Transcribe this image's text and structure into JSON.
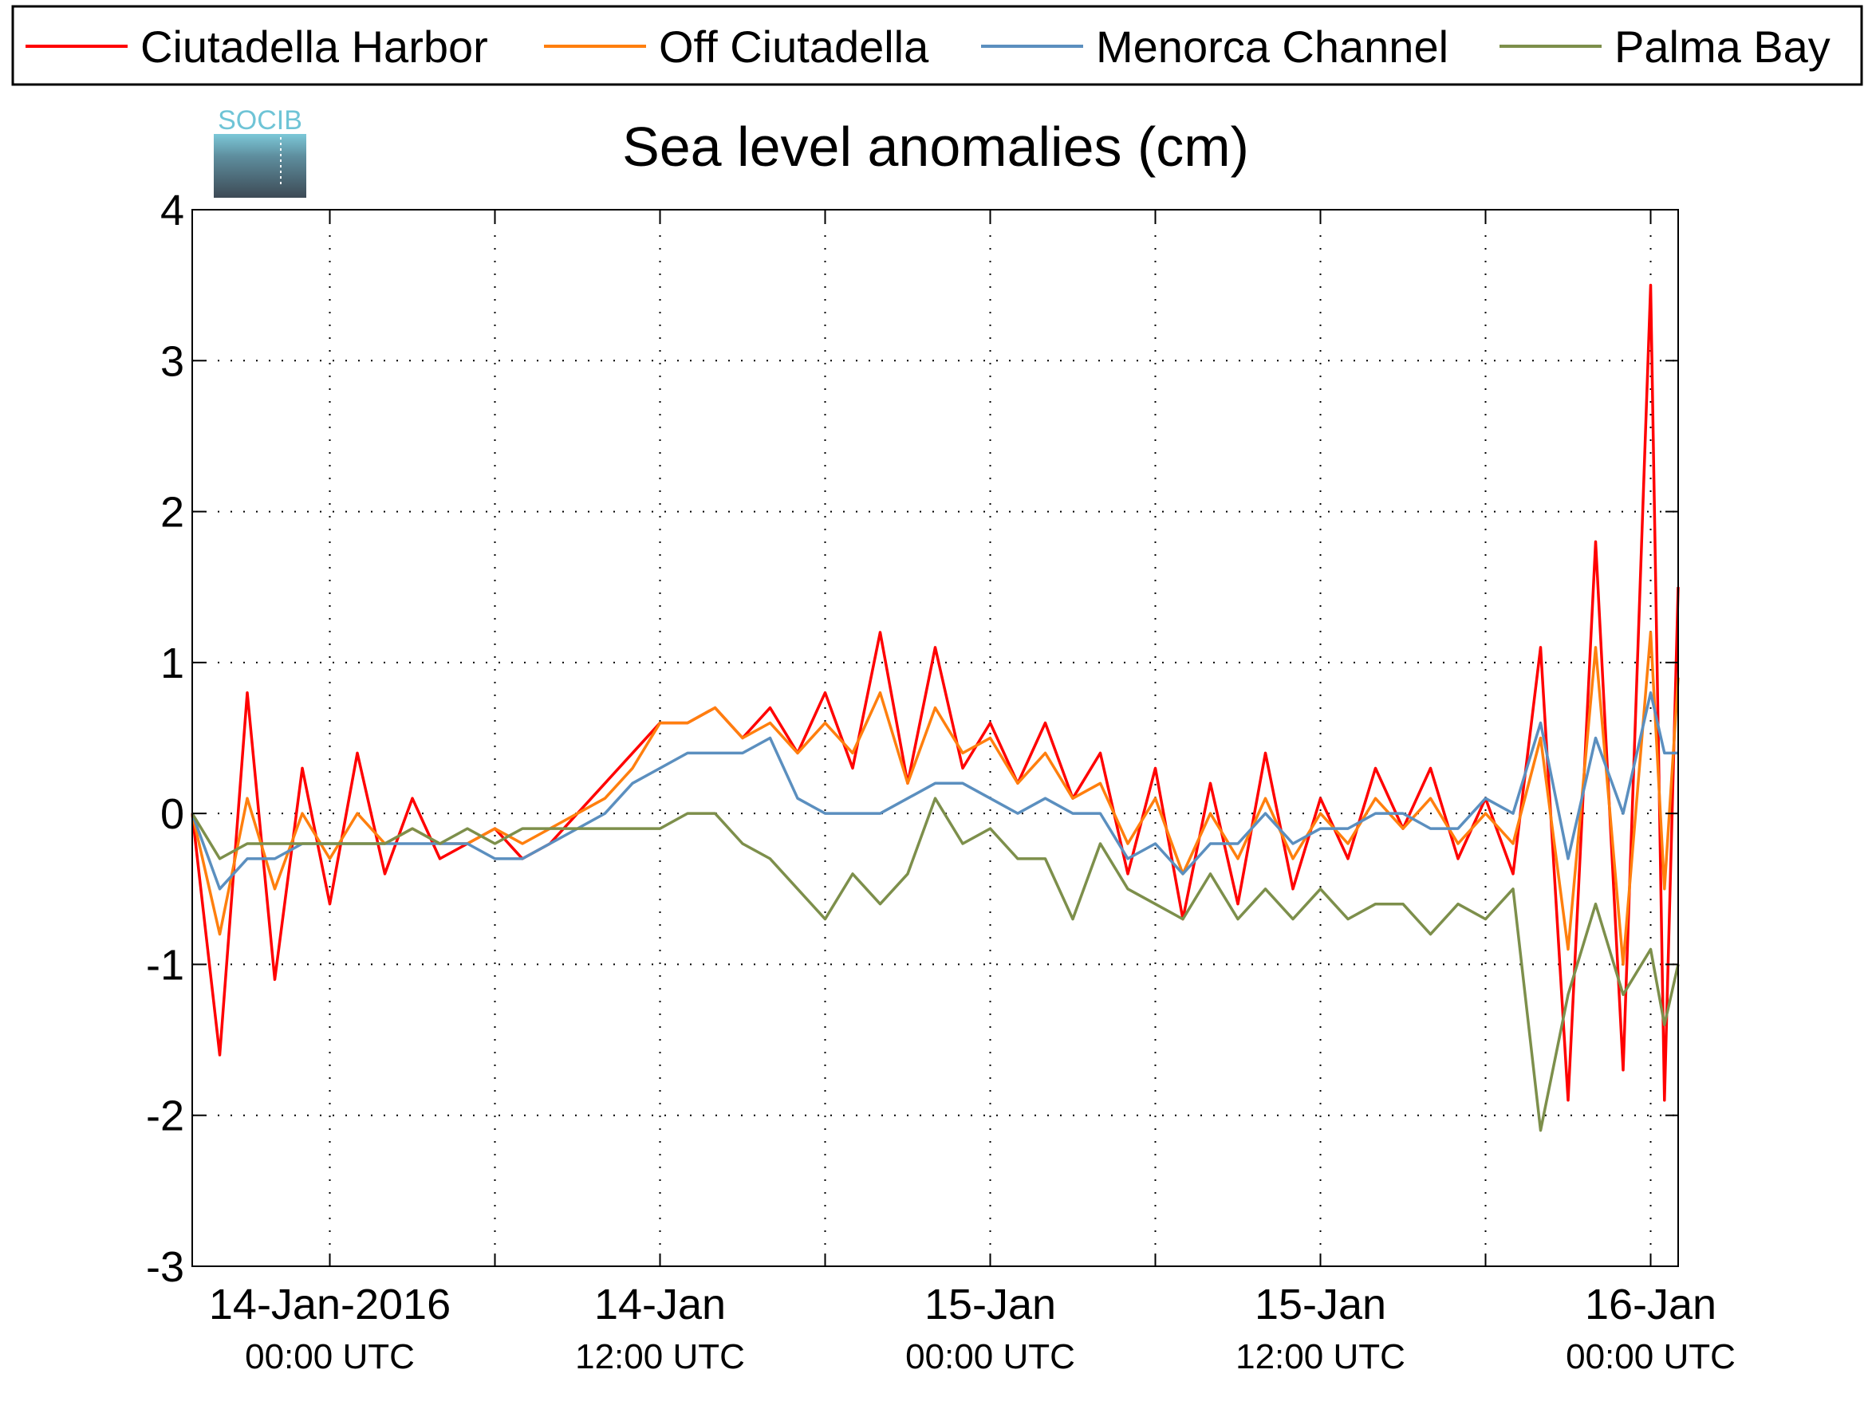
{
  "logo": {
    "text": "SOCIB"
  },
  "chart_data": {
    "type": "line",
    "title": "Sea level anomalies (cm)",
    "xlabel": "",
    "ylabel": "",
    "ylim": [
      -3,
      4
    ],
    "yticks": [
      "-3",
      "-2",
      "-1",
      "0",
      "1",
      "2",
      "3",
      "4"
    ],
    "xlim": [
      "2016-01-13T19:00",
      "2016-01-16T01:00"
    ],
    "xtick_labels": [
      {
        "date": "14-Jan-2016",
        "time": "00:00 UTC"
      },
      {
        "date": "14-Jan",
        "time": "12:00 UTC"
      },
      {
        "date": "15-Jan",
        "time": "00:00 UTC"
      },
      {
        "date": "15-Jan",
        "time": "12:00 UTC"
      },
      {
        "date": "16-Jan",
        "time": "00:00 UTC"
      }
    ],
    "grid": true,
    "legend_position": "top",
    "series": [
      {
        "name": "Ciutadella Harbor",
        "color": "#ff0000",
        "points": [
          [
            "2016-01-13T19:00",
            0.0
          ],
          [
            "2016-01-13T20:00",
            -1.6
          ],
          [
            "2016-01-13T21:00",
            0.8
          ],
          [
            "2016-01-13T22:00",
            -1.1
          ],
          [
            "2016-01-13T23:00",
            0.3
          ],
          [
            "2016-01-14T00:00",
            -0.6
          ],
          [
            "2016-01-14T01:00",
            0.4
          ],
          [
            "2016-01-14T02:00",
            -0.4
          ],
          [
            "2016-01-14T03:00",
            0.1
          ],
          [
            "2016-01-14T04:00",
            -0.3
          ],
          [
            "2016-01-14T05:00",
            -0.2
          ],
          [
            "2016-01-14T06:00",
            -0.1
          ],
          [
            "2016-01-14T07:00",
            -0.3
          ],
          [
            "2016-01-14T08:00",
            -0.2
          ],
          [
            "2016-01-14T09:00",
            0.0
          ],
          [
            "2016-01-14T10:00",
            0.2
          ],
          [
            "2016-01-14T11:00",
            0.4
          ],
          [
            "2016-01-14T12:00",
            0.6
          ],
          [
            "2016-01-14T13:00",
            0.6
          ],
          [
            "2016-01-14T14:00",
            0.7
          ],
          [
            "2016-01-14T15:00",
            0.5
          ],
          [
            "2016-01-14T16:00",
            0.7
          ],
          [
            "2016-01-14T17:00",
            0.4
          ],
          [
            "2016-01-14T18:00",
            0.8
          ],
          [
            "2016-01-14T19:00",
            0.3
          ],
          [
            "2016-01-14T20:00",
            1.2
          ],
          [
            "2016-01-14T21:00",
            0.2
          ],
          [
            "2016-01-14T22:00",
            1.1
          ],
          [
            "2016-01-14T23:00",
            0.3
          ],
          [
            "2016-01-15T00:00",
            0.6
          ],
          [
            "2016-01-15T01:00",
            0.2
          ],
          [
            "2016-01-15T02:00",
            0.6
          ],
          [
            "2016-01-15T03:00",
            0.1
          ],
          [
            "2016-01-15T04:00",
            0.4
          ],
          [
            "2016-01-15T05:00",
            -0.4
          ],
          [
            "2016-01-15T06:00",
            0.3
          ],
          [
            "2016-01-15T07:00",
            -0.7
          ],
          [
            "2016-01-15T08:00",
            0.2
          ],
          [
            "2016-01-15T09:00",
            -0.6
          ],
          [
            "2016-01-15T10:00",
            0.4
          ],
          [
            "2016-01-15T11:00",
            -0.5
          ],
          [
            "2016-01-15T12:00",
            0.1
          ],
          [
            "2016-01-15T13:00",
            -0.3
          ],
          [
            "2016-01-15T14:00",
            0.3
          ],
          [
            "2016-01-15T15:00",
            -0.1
          ],
          [
            "2016-01-15T16:00",
            0.3
          ],
          [
            "2016-01-15T17:00",
            -0.3
          ],
          [
            "2016-01-15T18:00",
            0.1
          ],
          [
            "2016-01-15T19:00",
            -0.4
          ],
          [
            "2016-01-15T20:00",
            1.1
          ],
          [
            "2016-01-15T21:00",
            -1.9
          ],
          [
            "2016-01-15T22:00",
            1.8
          ],
          [
            "2016-01-15T23:00",
            -1.7
          ],
          [
            "2016-01-16T00:00",
            3.5
          ],
          [
            "2016-01-16T00:30",
            -1.9
          ],
          [
            "2016-01-16T01:00",
            1.5
          ]
        ]
      },
      {
        "name": "Off Ciutadella",
        "color": "#ff7f0e",
        "points": [
          [
            "2016-01-13T19:00",
            0.0
          ],
          [
            "2016-01-13T20:00",
            -0.8
          ],
          [
            "2016-01-13T21:00",
            0.1
          ],
          [
            "2016-01-13T22:00",
            -0.5
          ],
          [
            "2016-01-13T23:00",
            0.0
          ],
          [
            "2016-01-14T00:00",
            -0.3
          ],
          [
            "2016-01-14T01:00",
            0.0
          ],
          [
            "2016-01-14T02:00",
            -0.2
          ],
          [
            "2016-01-14T03:00",
            -0.1
          ],
          [
            "2016-01-14T04:00",
            -0.2
          ],
          [
            "2016-01-14T05:00",
            -0.2
          ],
          [
            "2016-01-14T06:00",
            -0.1
          ],
          [
            "2016-01-14T07:00",
            -0.2
          ],
          [
            "2016-01-14T08:00",
            -0.1
          ],
          [
            "2016-01-14T09:00",
            0.0
          ],
          [
            "2016-01-14T10:00",
            0.1
          ],
          [
            "2016-01-14T11:00",
            0.3
          ],
          [
            "2016-01-14T12:00",
            0.6
          ],
          [
            "2016-01-14T13:00",
            0.6
          ],
          [
            "2016-01-14T14:00",
            0.7
          ],
          [
            "2016-01-14T15:00",
            0.5
          ],
          [
            "2016-01-14T16:00",
            0.6
          ],
          [
            "2016-01-14T17:00",
            0.4
          ],
          [
            "2016-01-14T18:00",
            0.6
          ],
          [
            "2016-01-14T19:00",
            0.4
          ],
          [
            "2016-01-14T20:00",
            0.8
          ],
          [
            "2016-01-14T21:00",
            0.2
          ],
          [
            "2016-01-14T22:00",
            0.7
          ],
          [
            "2016-01-14T23:00",
            0.4
          ],
          [
            "2016-01-15T00:00",
            0.5
          ],
          [
            "2016-01-15T01:00",
            0.2
          ],
          [
            "2016-01-15T02:00",
            0.4
          ],
          [
            "2016-01-15T03:00",
            0.1
          ],
          [
            "2016-01-15T04:00",
            0.2
          ],
          [
            "2016-01-15T05:00",
            -0.2
          ],
          [
            "2016-01-15T06:00",
            0.1
          ],
          [
            "2016-01-15T07:00",
            -0.4
          ],
          [
            "2016-01-15T08:00",
            0.0
          ],
          [
            "2016-01-15T09:00",
            -0.3
          ],
          [
            "2016-01-15T10:00",
            0.1
          ],
          [
            "2016-01-15T11:00",
            -0.3
          ],
          [
            "2016-01-15T12:00",
            0.0
          ],
          [
            "2016-01-15T13:00",
            -0.2
          ],
          [
            "2016-01-15T14:00",
            0.1
          ],
          [
            "2016-01-15T15:00",
            -0.1
          ],
          [
            "2016-01-15T16:00",
            0.1
          ],
          [
            "2016-01-15T17:00",
            -0.2
          ],
          [
            "2016-01-15T18:00",
            0.0
          ],
          [
            "2016-01-15T19:00",
            -0.2
          ],
          [
            "2016-01-15T20:00",
            0.5
          ],
          [
            "2016-01-15T21:00",
            -0.9
          ],
          [
            "2016-01-15T22:00",
            1.1
          ],
          [
            "2016-01-15T23:00",
            -1.0
          ],
          [
            "2016-01-16T00:00",
            1.2
          ],
          [
            "2016-01-16T00:30",
            -0.5
          ],
          [
            "2016-01-16T01:00",
            0.9
          ]
        ]
      },
      {
        "name": "Menorca Channel",
        "color": "#5b8fbf",
        "points": [
          [
            "2016-01-13T19:00",
            0.0
          ],
          [
            "2016-01-13T20:00",
            -0.5
          ],
          [
            "2016-01-13T21:00",
            -0.3
          ],
          [
            "2016-01-13T22:00",
            -0.3
          ],
          [
            "2016-01-13T23:00",
            -0.2
          ],
          [
            "2016-01-14T00:00",
            -0.2
          ],
          [
            "2016-01-14T01:00",
            -0.2
          ],
          [
            "2016-01-14T02:00",
            -0.2
          ],
          [
            "2016-01-14T03:00",
            -0.2
          ],
          [
            "2016-01-14T04:00",
            -0.2
          ],
          [
            "2016-01-14T05:00",
            -0.2
          ],
          [
            "2016-01-14T06:00",
            -0.3
          ],
          [
            "2016-01-14T07:00",
            -0.3
          ],
          [
            "2016-01-14T08:00",
            -0.2
          ],
          [
            "2016-01-14T09:00",
            -0.1
          ],
          [
            "2016-01-14T10:00",
            0.0
          ],
          [
            "2016-01-14T11:00",
            0.2
          ],
          [
            "2016-01-14T12:00",
            0.3
          ],
          [
            "2016-01-14T13:00",
            0.4
          ],
          [
            "2016-01-14T14:00",
            0.4
          ],
          [
            "2016-01-14T15:00",
            0.4
          ],
          [
            "2016-01-14T16:00",
            0.5
          ],
          [
            "2016-01-14T17:00",
            0.1
          ],
          [
            "2016-01-14T18:00",
            0.0
          ],
          [
            "2016-01-14T19:00",
            0.0
          ],
          [
            "2016-01-14T20:00",
            0.0
          ],
          [
            "2016-01-14T21:00",
            0.1
          ],
          [
            "2016-01-14T22:00",
            0.2
          ],
          [
            "2016-01-14T23:00",
            0.2
          ],
          [
            "2016-01-15T00:00",
            0.1
          ],
          [
            "2016-01-15T01:00",
            0.0
          ],
          [
            "2016-01-15T02:00",
            0.1
          ],
          [
            "2016-01-15T03:00",
            0.0
          ],
          [
            "2016-01-15T04:00",
            0.0
          ],
          [
            "2016-01-15T05:00",
            -0.3
          ],
          [
            "2016-01-15T06:00",
            -0.2
          ],
          [
            "2016-01-15T07:00",
            -0.4
          ],
          [
            "2016-01-15T08:00",
            -0.2
          ],
          [
            "2016-01-15T09:00",
            -0.2
          ],
          [
            "2016-01-15T10:00",
            0.0
          ],
          [
            "2016-01-15T11:00",
            -0.2
          ],
          [
            "2016-01-15T12:00",
            -0.1
          ],
          [
            "2016-01-15T13:00",
            -0.1
          ],
          [
            "2016-01-15T14:00",
            0.0
          ],
          [
            "2016-01-15T15:00",
            0.0
          ],
          [
            "2016-01-15T16:00",
            -0.1
          ],
          [
            "2016-01-15T17:00",
            -0.1
          ],
          [
            "2016-01-15T18:00",
            0.1
          ],
          [
            "2016-01-15T19:00",
            0.0
          ],
          [
            "2016-01-15T20:00",
            0.6
          ],
          [
            "2016-01-15T21:00",
            -0.3
          ],
          [
            "2016-01-15T22:00",
            0.5
          ],
          [
            "2016-01-15T23:00",
            0.0
          ],
          [
            "2016-01-16T00:00",
            0.8
          ],
          [
            "2016-01-16T00:30",
            0.4
          ],
          [
            "2016-01-16T01:00",
            0.4
          ]
        ]
      },
      {
        "name": "Palma Bay",
        "color": "#7d8f4b",
        "points": [
          [
            "2016-01-13T19:00",
            0.0
          ],
          [
            "2016-01-13T20:00",
            -0.3
          ],
          [
            "2016-01-13T21:00",
            -0.2
          ],
          [
            "2016-01-13T22:00",
            -0.2
          ],
          [
            "2016-01-13T23:00",
            -0.2
          ],
          [
            "2016-01-14T00:00",
            -0.2
          ],
          [
            "2016-01-14T01:00",
            -0.2
          ],
          [
            "2016-01-14T02:00",
            -0.2
          ],
          [
            "2016-01-14T03:00",
            -0.1
          ],
          [
            "2016-01-14T04:00",
            -0.2
          ],
          [
            "2016-01-14T05:00",
            -0.1
          ],
          [
            "2016-01-14T06:00",
            -0.2
          ],
          [
            "2016-01-14T07:00",
            -0.1
          ],
          [
            "2016-01-14T08:00",
            -0.1
          ],
          [
            "2016-01-14T09:00",
            -0.1
          ],
          [
            "2016-01-14T10:00",
            -0.1
          ],
          [
            "2016-01-14T11:00",
            -0.1
          ],
          [
            "2016-01-14T12:00",
            -0.1
          ],
          [
            "2016-01-14T13:00",
            0.0
          ],
          [
            "2016-01-14T14:00",
            0.0
          ],
          [
            "2016-01-14T15:00",
            -0.2
          ],
          [
            "2016-01-14T16:00",
            -0.3
          ],
          [
            "2016-01-14T17:00",
            -0.5
          ],
          [
            "2016-01-14T18:00",
            -0.7
          ],
          [
            "2016-01-14T19:00",
            -0.4
          ],
          [
            "2016-01-14T20:00",
            -0.6
          ],
          [
            "2016-01-14T21:00",
            -0.4
          ],
          [
            "2016-01-14T22:00",
            0.1
          ],
          [
            "2016-01-14T23:00",
            -0.2
          ],
          [
            "2016-01-15T00:00",
            -0.1
          ],
          [
            "2016-01-15T01:00",
            -0.3
          ],
          [
            "2016-01-15T02:00",
            -0.3
          ],
          [
            "2016-01-15T03:00",
            -0.7
          ],
          [
            "2016-01-15T04:00",
            -0.2
          ],
          [
            "2016-01-15T05:00",
            -0.5
          ],
          [
            "2016-01-15T06:00",
            -0.6
          ],
          [
            "2016-01-15T07:00",
            -0.7
          ],
          [
            "2016-01-15T08:00",
            -0.4
          ],
          [
            "2016-01-15T09:00",
            -0.7
          ],
          [
            "2016-01-15T10:00",
            -0.5
          ],
          [
            "2016-01-15T11:00",
            -0.7
          ],
          [
            "2016-01-15T12:00",
            -0.5
          ],
          [
            "2016-01-15T13:00",
            -0.7
          ],
          [
            "2016-01-15T14:00",
            -0.6
          ],
          [
            "2016-01-15T15:00",
            -0.6
          ],
          [
            "2016-01-15T16:00",
            -0.8
          ],
          [
            "2016-01-15T17:00",
            -0.6
          ],
          [
            "2016-01-15T18:00",
            -0.7
          ],
          [
            "2016-01-15T19:00",
            -0.5
          ],
          [
            "2016-01-15T20:00",
            -2.1
          ],
          [
            "2016-01-15T21:00",
            -1.2
          ],
          [
            "2016-01-15T22:00",
            -0.6
          ],
          [
            "2016-01-15T23:00",
            -1.2
          ],
          [
            "2016-01-16T00:00",
            -0.9
          ],
          [
            "2016-01-16T00:30",
            -1.4
          ],
          [
            "2016-01-16T01:00",
            -1.0
          ]
        ]
      }
    ]
  }
}
